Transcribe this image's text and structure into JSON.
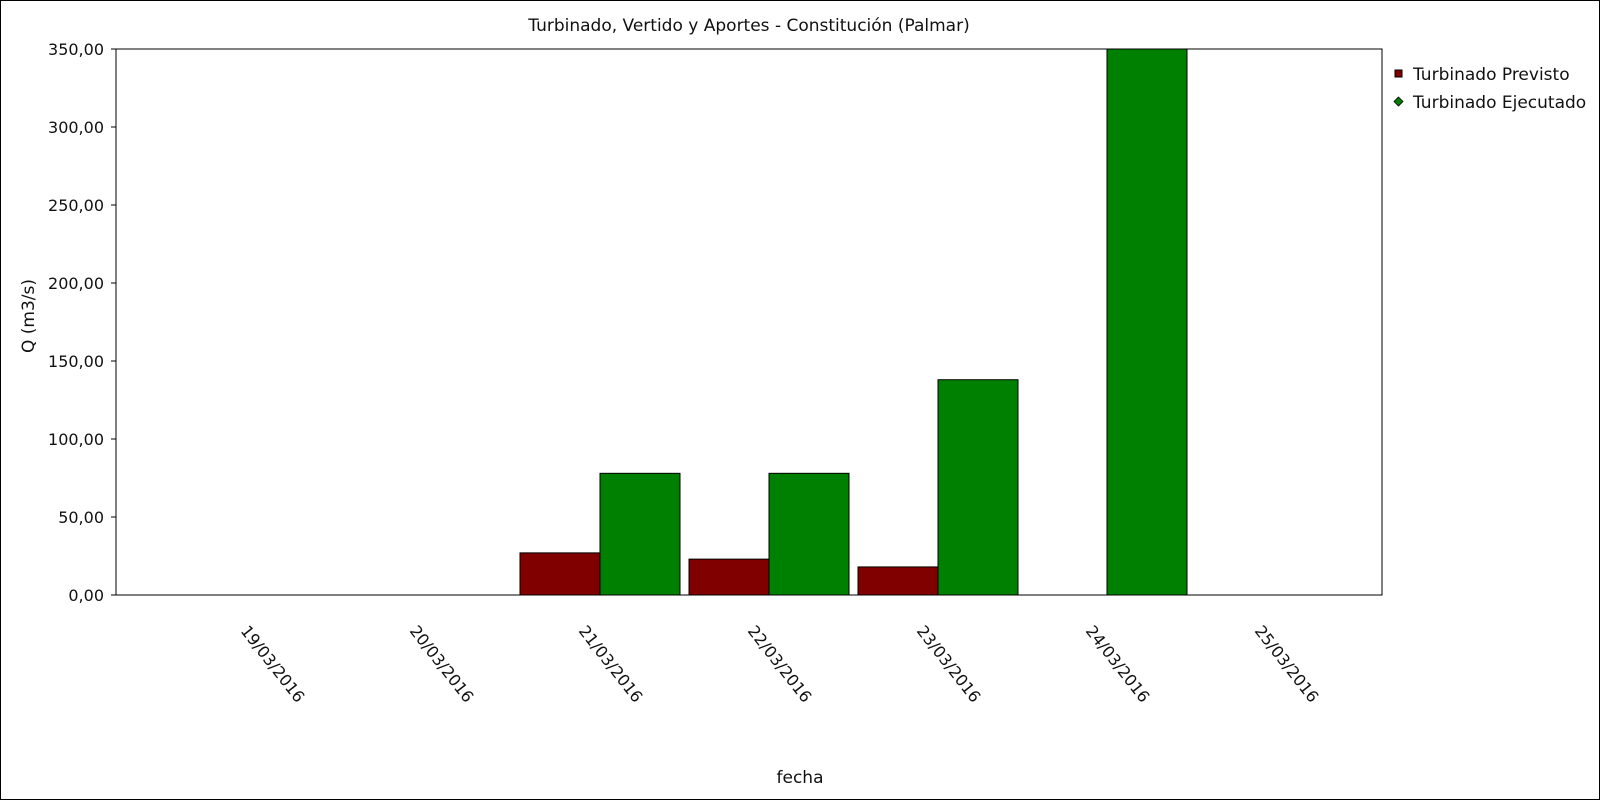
{
  "chart_data": {
    "type": "bar",
    "title": "Turbinado, Vertido y Aportes - Constitución (Palmar)",
    "xlabel": "fecha",
    "ylabel": "Q (m3/s)",
    "ylim": [
      0,
      350
    ],
    "yticks": [
      0,
      50,
      100,
      150,
      200,
      250,
      300,
      350
    ],
    "ytick_labels": [
      "0,00",
      "50,00",
      "100,00",
      "150,00",
      "200,00",
      "250,00",
      "300,00",
      "350,00"
    ],
    "categories": [
      "19/03/2016",
      "20/03/2016",
      "21/03/2016",
      "22/03/2016",
      "23/03/2016",
      "24/03/2016",
      "25/03/2016"
    ],
    "series": [
      {
        "name": "Turbinado Previsto",
        "color": "#800000",
        "values": [
          null,
          null,
          27,
          23,
          18,
          null,
          null
        ]
      },
      {
        "name": "Turbinado Ejecutado",
        "color": "#008000",
        "values": [
          null,
          null,
          78,
          78,
          138,
          350,
          null
        ]
      }
    ],
    "legend_position": "right",
    "grid": false
  }
}
